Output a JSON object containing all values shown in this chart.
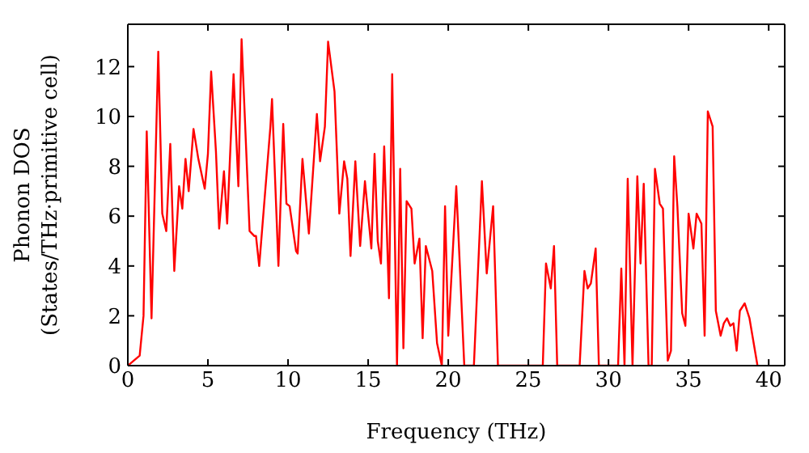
{
  "chart_data": {
    "type": "line",
    "xlabel": "Frequency (THz)",
    "ylabel": "Phonon DOS\n(States/THz·primitive cell)",
    "xlim": [
      0,
      41
    ],
    "ylim": [
      0,
      13.7
    ],
    "xticks": [
      0,
      5,
      10,
      15,
      20,
      25,
      30,
      35,
      40
    ],
    "yticks": [
      0,
      2,
      4,
      6,
      8,
      10,
      12
    ],
    "marker": "none",
    "line_style": "solid",
    "x": [
      0,
      0.74,
      0.98,
      1.18,
      1.48,
      1.9,
      2.15,
      2.4,
      2.65,
      2.9,
      3.2,
      3.4,
      3.6,
      3.8,
      4.1,
      4.4,
      4.8,
      5.0,
      5.2,
      5.5,
      5.7,
      6.0,
      6.2,
      6.6,
      6.9,
      7.1,
      7.6,
      7.9,
      8.0,
      8.2,
      8.9,
      9.0,
      9.4,
      9.7,
      9.9,
      10.1,
      10.5,
      10.6,
      10.9,
      11.3,
      11.8,
      12.0,
      12.3,
      12.5,
      12.9,
      13.2,
      13.5,
      13.7,
      13.9,
      14.2,
      14.5,
      14.8,
      15.2,
      15.4,
      15.6,
      15.8,
      16.0,
      16.3,
      16.5,
      16.8,
      17.0,
      17.2,
      17.4,
      17.7,
      17.9,
      18.2,
      18.4,
      18.6,
      19.0,
      19.3,
      19.6,
      19.8,
      20.0,
      20.5,
      21.0,
      21.6,
      22.1,
      22.4,
      22.8,
      23.1,
      25.9,
      26.1,
      26.4,
      26.6,
      26.8,
      28.2,
      28.5,
      28.7,
      28.9,
      29.2,
      29.4,
      30.6,
      30.8,
      31.0,
      31.2,
      31.5,
      31.8,
      32.0,
      32.2,
      32.5,
      32.7,
      32.9,
      33.2,
      33.4,
      33.7,
      33.9,
      34.1,
      34.3,
      34.6,
      34.8,
      35.0,
      35.3,
      35.5,
      35.8,
      36.0,
      36.2,
      36.5,
      36.7,
      37.0,
      37.2,
      37.4,
      37.6,
      37.8,
      38.0,
      38.2,
      38.5,
      38.8,
      39.3
    ],
    "series": [
      {
        "color": "#ff0000",
        "values": [
          0,
          0.4,
          2.0,
          9.4,
          1.9,
          12.6,
          6.1,
          5.4,
          8.9,
          3.8,
          7.2,
          6.3,
          8.3,
          7.0,
          9.5,
          8.3,
          7.1,
          8.5,
          11.8,
          8.6,
          5.5,
          7.8,
          5.7,
          11.7,
          7.2,
          13.1,
          5.4,
          5.2,
          5.2,
          4.0,
          9.6,
          10.7,
          4.0,
          9.7,
          6.5,
          6.4,
          4.6,
          4.5,
          8.3,
          5.3,
          10.1,
          8.2,
          9.6,
          13.0,
          11.0,
          6.1,
          8.2,
          7.5,
          4.4,
          8.2,
          4.8,
          7.4,
          4.7,
          8.5,
          5.0,
          4.1,
          8.8,
          2.7,
          11.7,
          0,
          7.9,
          0.7,
          6.6,
          6.3,
          4.1,
          5.1,
          1.1,
          4.8,
          3.8,
          0.9,
          0,
          6.4,
          1.2,
          7.2,
          0,
          0,
          7.4,
          3.7,
          6.4,
          0,
          0,
          4.1,
          3.1,
          4.8,
          0,
          0,
          3.8,
          3.1,
          3.3,
          4.7,
          0,
          0,
          3.9,
          0,
          7.5,
          0,
          7.6,
          4.1,
          7.3,
          0,
          0,
          7.9,
          6.5,
          6.3,
          0.2,
          0.6,
          8.4,
          6.4,
          2.1,
          1.6,
          6.1,
          4.7,
          6.1,
          5.7,
          1.2,
          10.2,
          9.6,
          2.2,
          1.2,
          1.7,
          1.9,
          1.6,
          1.7,
          0.6,
          2.2,
          2.5,
          1.9,
          0
        ]
      }
    ]
  }
}
